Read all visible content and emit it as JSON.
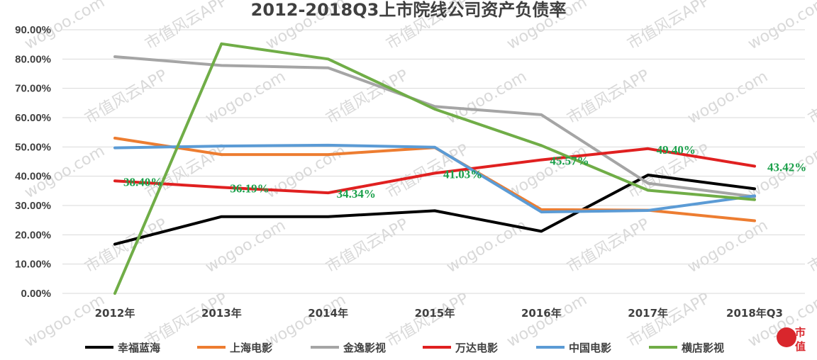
{
  "chart_data": {
    "type": "line",
    "title": "2012-2018Q3上市院线公司资产负债率",
    "categories": [
      "2012年",
      "2013年",
      "2014年",
      "2015年",
      "2016年",
      "2017年",
      "2018年Q3"
    ],
    "ylim": [
      0,
      90
    ],
    "yticks": [
      "0.00%",
      "10.00%",
      "20.00%",
      "30.00%",
      "40.00%",
      "50.00%",
      "60.00%",
      "70.00%",
      "80.00%",
      "90.00%"
    ],
    "grid": true,
    "legend_position": "bottom",
    "series": [
      {
        "name": "幸福蓝海",
        "color": "#000000",
        "values": [
          16.8,
          26.2,
          26.2,
          28.2,
          21.2,
          40.4,
          35.7
        ]
      },
      {
        "name": "上海电影",
        "color": "#ed7d31",
        "values": [
          53.0,
          47.4,
          47.4,
          49.8,
          28.6,
          28.4,
          24.8
        ]
      },
      {
        "name": "金逸影视",
        "color": "#a5a5a5",
        "values": [
          80.8,
          77.8,
          77.0,
          63.8,
          61.0,
          37.6,
          33.0
        ]
      },
      {
        "name": "万达电影",
        "color": "#e02020",
        "values": [
          38.4,
          36.19,
          34.34,
          41.03,
          45.57,
          49.4,
          43.42
        ]
      },
      {
        "name": "中国电影",
        "color": "#5b9bd5",
        "values": [
          49.7,
          50.3,
          50.6,
          49.9,
          27.8,
          28.3,
          33.3
        ]
      },
      {
        "name": "横店影视",
        "color": "#70ad47",
        "values": [
          0.0,
          85.2,
          80.0,
          62.9,
          50.5,
          35.2,
          32.0
        ]
      }
    ],
    "data_labels": [
      {
        "text": "38.40%"
      },
      {
        "text": "36.19%"
      },
      {
        "text": "34.34%"
      },
      {
        "text": "41.03%"
      },
      {
        "text": "45.57%"
      },
      {
        "text": "49.40%"
      },
      {
        "text": "43.42%"
      }
    ]
  },
  "watermarks": [
    "wogoo.com",
    "市值风云APP"
  ],
  "logo_text": "市值风云"
}
